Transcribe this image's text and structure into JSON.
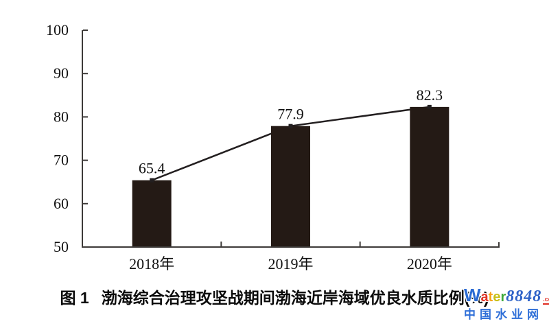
{
  "chart_data": {
    "type": "bar",
    "subtype": "bar-with-trend-line",
    "categories": [
      "2018年",
      "2019年",
      "2020年"
    ],
    "values": [
      65.4,
      77.9,
      82.3
    ],
    "value_labels": [
      "65.4",
      "77.9",
      "82.3"
    ],
    "title_prefix": "图 1",
    "title": "渤海综合治理攻坚战期间渤海近岸海域优良水质比例(%)",
    "xlabel": "",
    "ylabel": "",
    "ylim": [
      50,
      100
    ],
    "y_ticks": [
      50,
      60,
      70,
      80,
      90,
      100
    ],
    "grid": false,
    "legend": "none",
    "bar_color": "#241a15",
    "line_color": "#231f20",
    "axis_color": "#3d3a38",
    "text_color": "#111111"
  },
  "watermark": {
    "brand_letters": [
      {
        "ch": "W",
        "color": "#2b6bd3"
      },
      {
        "ch": "a",
        "color": "#e03427"
      },
      {
        "ch": "t",
        "color": "#f6a117"
      },
      {
        "ch": "e",
        "color": "#c9c019"
      },
      {
        "ch": "r",
        "color": "#3da83a"
      }
    ],
    "brand_number": "8848",
    "brand_number_color": "#2e62c8",
    "domain_suffix": ".com",
    "domain_suffix_color": "#e02b20",
    "site_name": "中国水业网",
    "site_name_color": "#2f6fd8"
  }
}
